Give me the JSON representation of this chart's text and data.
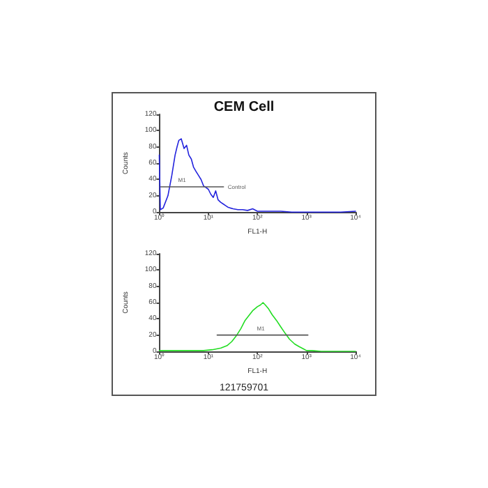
{
  "chart_data": [
    {
      "type": "line",
      "title": "CEM Cell",
      "xlabel": "FL1-H",
      "ylabel": "Counts",
      "log": "x",
      "xlim": [
        1,
        10000
      ],
      "ylim": [
        0,
        120
      ],
      "xticks": [
        {
          "value": 1,
          "label": "10⁰"
        },
        {
          "value": 10,
          "label": "10¹"
        },
        {
          "value": 100,
          "label": "10²"
        },
        {
          "value": 1000,
          "label": "10³"
        },
        {
          "value": 10000,
          "label": "10⁴"
        }
      ],
      "yticks": [
        0,
        20,
        40,
        60,
        80,
        100,
        120
      ],
      "grid": false,
      "marker": "none",
      "series": [
        {
          "color": "#2222dd",
          "x": [
            1,
            1.05,
            1.2,
            1.5,
            1.8,
            2.1,
            2.3,
            2.5,
            2.8,
            3.2,
            3.6,
            4,
            4.5,
            5,
            5.6,
            6.3,
            7.1,
            8,
            9,
            10,
            11.2,
            12.6,
            14.1,
            15.8,
            17.8,
            20,
            22.4,
            25,
            28,
            32,
            40,
            50,
            63,
            80,
            100,
            150,
            200,
            300,
            500,
            1000,
            2000,
            5000,
            10000
          ],
          "values": [
            70,
            3,
            5,
            20,
            45,
            70,
            80,
            88,
            90,
            78,
            82,
            70,
            65,
            55,
            50,
            45,
            40,
            32,
            30,
            28,
            22,
            18,
            26,
            15,
            12,
            10,
            8,
            6,
            5,
            4,
            3,
            3,
            2,
            4,
            1,
            1,
            1,
            1,
            0,
            0,
            0,
            0,
            1
          ]
        },
        {
          "color": "#555555",
          "x": [
            1.07,
            20.4
          ],
          "values": [
            31,
            31
          ],
          "line_style": "solid"
        }
      ],
      "annotations": [
        {
          "text": "M1",
          "x": 2.9,
          "y": 36
        },
        {
          "text": "Control",
          "x": 20.4,
          "y": 31
        }
      ]
    },
    {
      "type": "line",
      "xlabel": "FL1-H",
      "ylabel": "Counts",
      "log": "x",
      "xlim": [
        1,
        10000
      ],
      "ylim": [
        0,
        120
      ],
      "xticks": [
        {
          "value": 1,
          "label": "10⁰"
        },
        {
          "value": 10,
          "label": "10¹"
        },
        {
          "value": 100,
          "label": "10²"
        },
        {
          "value": 1000,
          "label": "10³"
        },
        {
          "value": 10000,
          "label": "10⁴"
        }
      ],
      "yticks": [
        0,
        20,
        40,
        60,
        80,
        100,
        120
      ],
      "grid": false,
      "marker": "none",
      "series": [
        {
          "color": "#22dd22",
          "x": [
            1,
            2,
            4,
            8,
            12,
            18,
            24,
            30,
            38,
            46,
            56,
            69,
            80,
            100,
            115,
            130,
            145,
            170,
            200,
            245,
            300,
            370,
            450,
            575,
            700,
            870,
            1000,
            1300,
            2000,
            5000,
            10000
          ],
          "values": [
            1,
            1,
            1,
            1,
            2,
            4,
            7,
            12,
            20,
            28,
            38,
            45,
            50,
            55,
            57,
            60,
            57,
            52,
            45,
            38,
            30,
            22,
            15,
            9,
            6,
            3,
            1,
            1,
            0,
            0,
            0
          ]
        },
        {
          "color": "#555555",
          "x": [
            15.1,
            1070
          ],
          "values": [
            20,
            20
          ],
          "line_style": "solid"
        }
      ],
      "annotations": [
        {
          "text": "M1",
          "x": 117,
          "y": 25
        },
        "121759701"
      ]
    }
  ]
}
